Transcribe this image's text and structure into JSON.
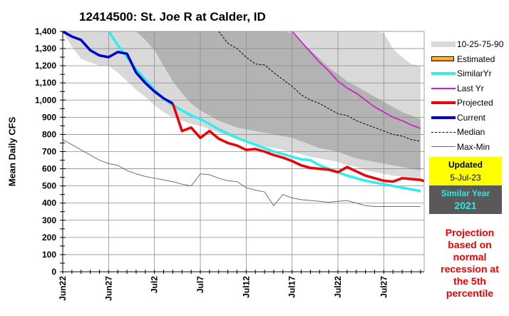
{
  "chart_data": {
    "type": "line",
    "title": "12414500: St. Joe R at Calder, ID",
    "xlabel": "",
    "ylabel": "Mean Daily CFS",
    "ylim": [
      0,
      1400
    ],
    "yticks": [
      0,
      100,
      200,
      300,
      400,
      500,
      600,
      700,
      800,
      900,
      1000,
      1100,
      1200,
      1300,
      1400
    ],
    "ytick_labels": [
      "0",
      "100",
      "200",
      "300",
      "400",
      "500",
      "600",
      "700",
      "800",
      "900",
      "1,000",
      "1,100",
      "1,200",
      "1,300",
      "1,400"
    ],
    "x_start": "Jun22",
    "x_days": 40,
    "xtick_labels": [
      {
        "day": 0,
        "label": "Jun22"
      },
      {
        "day": 5,
        "label": "Jun27"
      },
      {
        "day": 10,
        "label": "Jul2"
      },
      {
        "day": 15,
        "label": "Jul7"
      },
      {
        "day": 20,
        "label": "Jul12"
      },
      {
        "day": 25,
        "label": "Jul17"
      },
      {
        "day": 30,
        "label": "Jul22"
      },
      {
        "day": 35,
        "label": "Jul27"
      }
    ],
    "grid": true,
    "legend_position": "right",
    "bands": {
      "p10": [
        1400,
        1290,
        1250,
        1220,
        1200,
        1150,
        1100,
        1040,
        990,
        960,
        930,
        900,
        880,
        850,
        830,
        810,
        790,
        770,
        750,
        730,
        710,
        700,
        690,
        680,
        670,
        660,
        650,
        640,
        630,
        620,
        610,
        600,
        590,
        580,
        570,
        560,
        550,
        540,
        530,
        520
      ],
      "p25": [
        1400,
        1400,
        1400,
        1400,
        1400,
        1400,
        1400,
        1400,
        1400,
        1400,
        1400,
        1400,
        1400,
        1400,
        1400,
        1400,
        1400,
        1400,
        1400,
        1400,
        1400,
        1400,
        1400,
        1400,
        1400,
        1400,
        1400,
        1400,
        1400,
        1400,
        1400,
        1400,
        1400,
        1400,
        1400,
        1400,
        1400,
        1400,
        1400,
        1400
      ],
      "lower_light": [
        1400,
        1310,
        1240,
        1220,
        1200,
        1200,
        1160,
        1110,
        1060,
        1020,
        970,
        930,
        900,
        880,
        860,
        850,
        830,
        810,
        790,
        775,
        760,
        740,
        730,
        720,
        710,
        695,
        685,
        670,
        660,
        650,
        640,
        620,
        610,
        590,
        580,
        570,
        560,
        555,
        545,
        540
      ],
      "lower_dark": [
        null,
        null,
        null,
        null,
        null,
        null,
        null,
        1400,
        1400,
        1350,
        1290,
        1200,
        1110,
        1040,
        980,
        940,
        910,
        880,
        860,
        840,
        830,
        820,
        810,
        800,
        790,
        780,
        760,
        740,
        720,
        710,
        700,
        680,
        660,
        650,
        640,
        630,
        620,
        610,
        600,
        590
      ],
      "upper_dark": [
        null,
        null,
        null,
        null,
        null,
        null,
        null,
        1400,
        1400,
        1400,
        1400,
        1400,
        1400,
        1400,
        1400,
        1400,
        1400,
        1400,
        1400,
        1400,
        1400,
        1400,
        1400,
        1400,
        1400,
        1390,
        1340,
        1290,
        1240,
        1190,
        1150,
        1110,
        1080,
        1050,
        1020,
        990,
        960,
        930,
        910,
        890
      ],
      "upper_light": [
        1400,
        1400,
        1400,
        1400,
        1400,
        1400,
        1400,
        1400,
        1400,
        1400,
        1400,
        1400,
        1400,
        1400,
        1400,
        1400,
        1400,
        1400,
        1400,
        1400,
        1400,
        1400,
        1400,
        1400,
        1400,
        1400,
        1400,
        1400,
        1400,
        1400,
        1400,
        1400,
        1400,
        1400,
        1400,
        1390,
        1300,
        1250,
        1210,
        1200
      ]
    },
    "series": [
      {
        "name": "Current",
        "color": "#0000cc",
        "width": 3.5,
        "start_day": 0,
        "values": [
          1400,
          1370,
          1350,
          1290,
          1260,
          1250,
          1280,
          1270,
          1160,
          1100,
          1050,
          1010,
          980
        ]
      },
      {
        "name": "Projected",
        "color": "#ee0000",
        "width": 3.5,
        "start_day": 12,
        "values": [
          980,
          820,
          840,
          780,
          820,
          775,
          750,
          735,
          710,
          715,
          700,
          680,
          665,
          645,
          620,
          605,
          600,
          595,
          580,
          610,
          585,
          560,
          545,
          530,
          525,
          545,
          540,
          535,
          520
        ]
      },
      {
        "name": "SimilarYr",
        "color": "#33ecec",
        "width": 3.5,
        "start_day": 5,
        "values": [
          1400,
          1320,
          1250,
          1180,
          1120,
          1060,
          1010,
          970,
          940,
          910,
          890,
          860,
          830,
          805,
          780,
          760,
          740,
          720,
          700,
          685,
          670,
          655,
          650,
          620,
          600,
          580,
          560,
          545,
          530,
          520,
          510,
          500,
          490,
          480,
          470
        ]
      },
      {
        "name": "Last Yr",
        "color": "#cc22cc",
        "width": 1.8,
        "start_day": 25,
        "values": [
          1400,
          1340,
          1280,
          1220,
          1170,
          1110,
          1070,
          1040,
          1000,
          960,
          930,
          900,
          880,
          855,
          835
        ]
      },
      {
        "name": "Median",
        "color": "#000000",
        "width": 1,
        "dash": "3,2",
        "start_day": 17,
        "values": [
          1400,
          1330,
          1300,
          1250,
          1210,
          1205,
          1160,
          1120,
          1080,
          1030,
          1000,
          980,
          950,
          920,
          910,
          880,
          860,
          840,
          820,
          800,
          790,
          770,
          760
        ]
      },
      {
        "name": "Max-Min",
        "color": "#6b6b8f",
        "width": 1,
        "start_day": 0,
        "values": [
          770,
          740,
          710,
          680,
          650,
          630,
          620,
          590,
          570,
          555,
          545,
          535,
          525,
          510,
          500,
          570,
          565,
          545,
          530,
          525,
          490,
          475,
          465,
          385,
          450,
          430,
          420,
          415,
          410,
          405,
          410,
          415,
          400,
          385,
          380,
          380,
          380,
          380,
          380,
          380
        ]
      }
    ]
  },
  "legend": [
    {
      "label": "10-25-75-90",
      "icon": "band-swatch"
    },
    {
      "label": "Estimated",
      "icon": "estimated-swatch"
    },
    {
      "label": "SimilarYr",
      "icon": "similar-line"
    },
    {
      "label": "Last Yr",
      "icon": "lastyr-line"
    },
    {
      "label": "Projected",
      "icon": "projected-line"
    },
    {
      "label": "Current",
      "icon": "current-line"
    },
    {
      "label": "Median",
      "icon": "median-line"
    },
    {
      "label": "Max-Min",
      "icon": "maxmin-line"
    }
  ],
  "updated": {
    "label": "Updated",
    "date": "5-Jul-23"
  },
  "similar_year": {
    "label": "Similar Year",
    "year": "2021"
  },
  "note": "Projection based on normal recession at the 5th percentile"
}
